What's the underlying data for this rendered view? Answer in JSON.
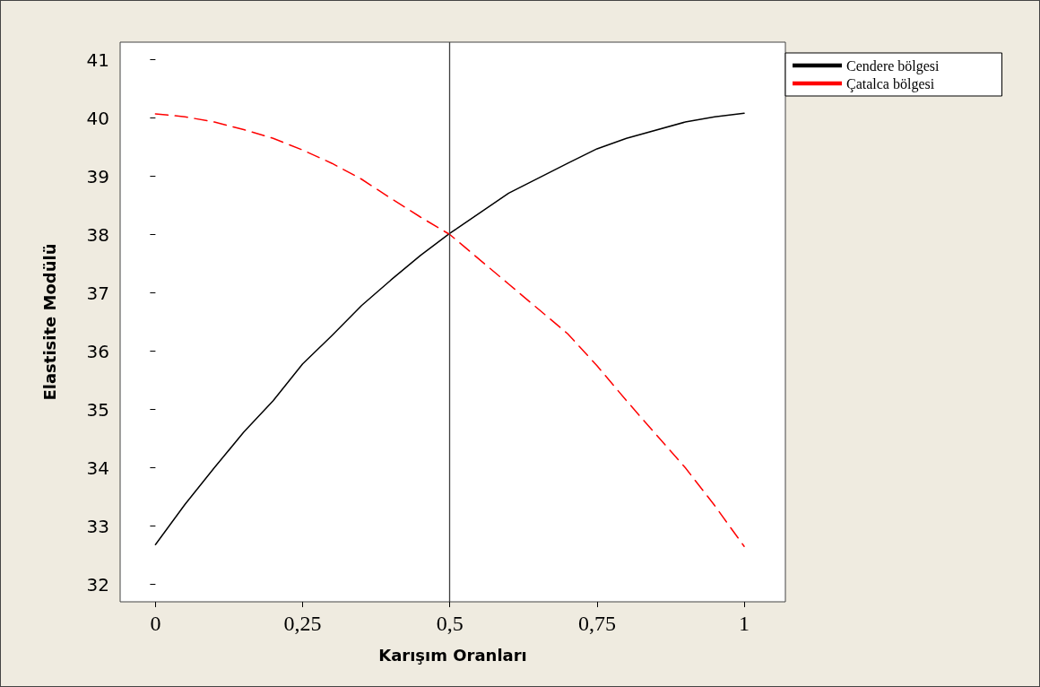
{
  "chart_data": {
    "type": "line",
    "xlabel": "Karışım Oranları",
    "ylabel": "Elastisite Modülü",
    "x": [
      0,
      0.05,
      0.1,
      0.15,
      0.2,
      0.25,
      0.3,
      0.35,
      0.4,
      0.45,
      0.5,
      0.6,
      0.7,
      0.75,
      0.8,
      0.9,
      0.95,
      1
    ],
    "series": [
      {
        "name": "Cendere bölgesi",
        "color": "#000000",
        "line_style": "solid",
        "values": [
          32.68,
          33.37,
          34.0,
          34.61,
          35.15,
          35.78,
          36.27,
          36.78,
          37.22,
          37.64,
          38.02,
          38.71,
          39.22,
          39.47,
          39.65,
          39.93,
          40.02,
          40.08
        ]
      },
      {
        "name": "Çatalca bölgesi",
        "color": "#ff0000",
        "line_style": "dashed",
        "values": [
          40.07,
          40.02,
          39.93,
          39.8,
          39.65,
          39.45,
          39.22,
          38.95,
          38.62,
          38.3,
          38.0,
          37.15,
          36.3,
          35.75,
          35.15,
          34.0,
          33.35,
          32.65
        ]
      }
    ],
    "xlim": [
      -0.06,
      1.07
    ],
    "xticks": [
      0,
      {
        "value": 0.25,
        "label": "0,25"
      },
      {
        "value": 0.5,
        "label": "0,5"
      },
      {
        "value": 0.75,
        "label": "0,75"
      },
      1
    ],
    "ylim": [
      31.7,
      41.3
    ],
    "yticks": [
      32,
      33,
      34,
      35,
      36,
      37,
      38,
      39,
      40,
      41
    ],
    "ref_lines": [
      {
        "axis": "x",
        "value": 0.5,
        "color": "#404040"
      }
    ],
    "grid": false,
    "legend": "top right",
    "marker": "none"
  }
}
